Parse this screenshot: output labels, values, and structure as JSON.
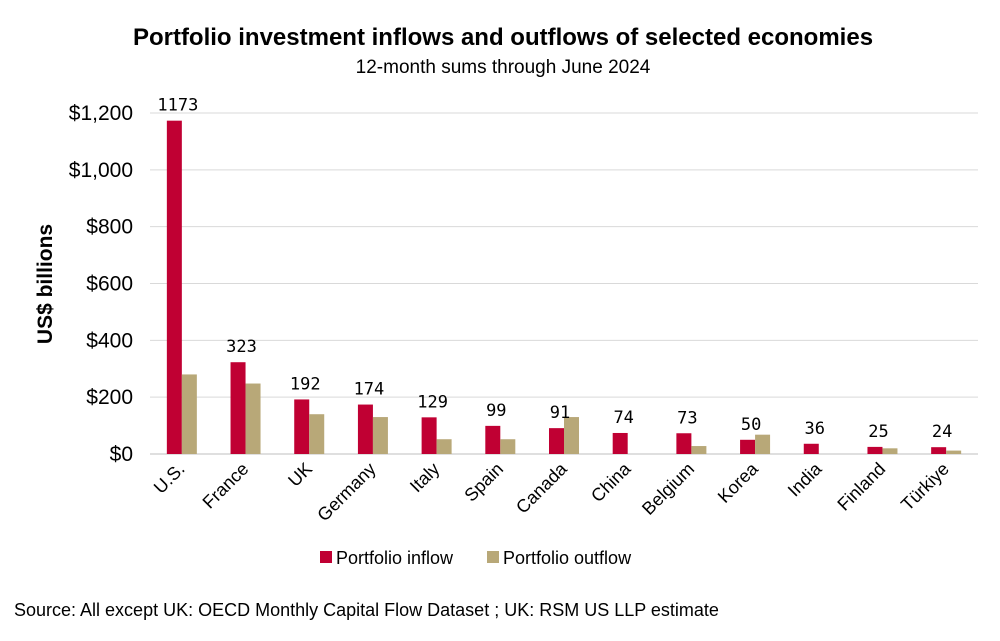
{
  "chart_data": {
    "type": "bar",
    "title": "Portfolio investment inflows and outflows of selected economies",
    "subtitle": "12-month sums through June 2024",
    "ylabel": "US$ billions",
    "xlabel": "",
    "ylim": [
      0,
      1200
    ],
    "yticks": [
      0,
      200,
      400,
      600,
      800,
      1000,
      1200
    ],
    "ytick_labels": [
      "$0",
      "$200",
      "$400",
      "$600",
      "$800",
      "$1,000",
      "$1,200"
    ],
    "grid": true,
    "legend_position": "bottom",
    "categories": [
      "U.S.",
      "France",
      "UK",
      "Germany",
      "Italy",
      "Spain",
      "Canada",
      "China",
      "Belgium",
      "Korea",
      "India",
      "Finland",
      "Türkiye"
    ],
    "series": [
      {
        "name": "Portfolio inflow",
        "color": "#c00033",
        "values": [
          1173,
          323,
          192,
          174,
          129,
          99,
          91,
          74,
          73,
          50,
          36,
          25,
          24
        ],
        "labels": [
          "1173",
          "323",
          "192",
          "174",
          "129",
          "99",
          "91",
          "74",
          "73",
          "50",
          "36",
          "25",
          "24"
        ]
      },
      {
        "name": "Portfolio outflow",
        "color": "#b8a878",
        "values": [
          280,
          248,
          140,
          130,
          52,
          52,
          130,
          0,
          28,
          68,
          0,
          20,
          12
        ]
      }
    ],
    "source": "Source: All except UK: OECD Monthly Capital Flow Dataset ; UK: RSM US LLP estimate"
  }
}
